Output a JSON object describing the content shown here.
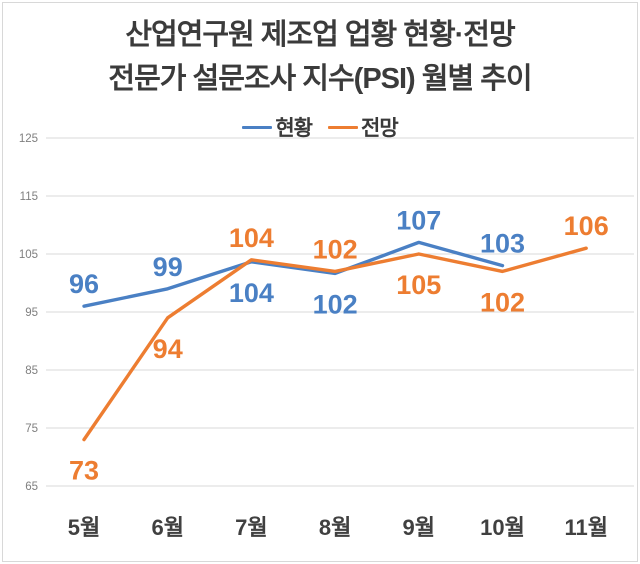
{
  "title": {
    "line1": "산업연구원 제조업 업황 현황·전망",
    "line2": "전문가 설문조사 지수(PSI) 월별 추이"
  },
  "legend": [
    {
      "name": "현황",
      "color": "#4A80C4"
    },
    {
      "name": "전망",
      "color": "#ED7D31"
    }
  ],
  "chart_data": {
    "type": "line",
    "title": "산업연구원 제조업 업황 현황·전망 전문가 설문조사 지수(PSI) 월별 추이",
    "categories": [
      "5월",
      "6월",
      "7월",
      "8월",
      "9월",
      "10월",
      "11월"
    ],
    "series": [
      {
        "name": "현황",
        "color": "#4A80C4",
        "values": [
          96,
          99,
          104,
          102,
          107,
          103,
          null
        ],
        "label_positions": [
          "above",
          "above",
          "below",
          "below",
          "above",
          "above",
          null
        ]
      },
      {
        "name": "전망",
        "color": "#ED7D31",
        "values": [
          73,
          94,
          104,
          102,
          105,
          102,
          106
        ],
        "label_positions": [
          "below",
          "below",
          "above",
          "above",
          "below",
          "below",
          "above"
        ]
      }
    ],
    "ylim": [
      65,
      125
    ],
    "yticks": [
      125,
      115,
      105,
      95,
      85,
      75,
      65
    ],
    "grid": true,
    "legend_position": "top",
    "xlabel": "",
    "ylabel": "",
    "colors": {
      "grid": "#D9D9D9",
      "ytick_text": "#7F7F7F",
      "xtick_text": "#404040"
    }
  }
}
